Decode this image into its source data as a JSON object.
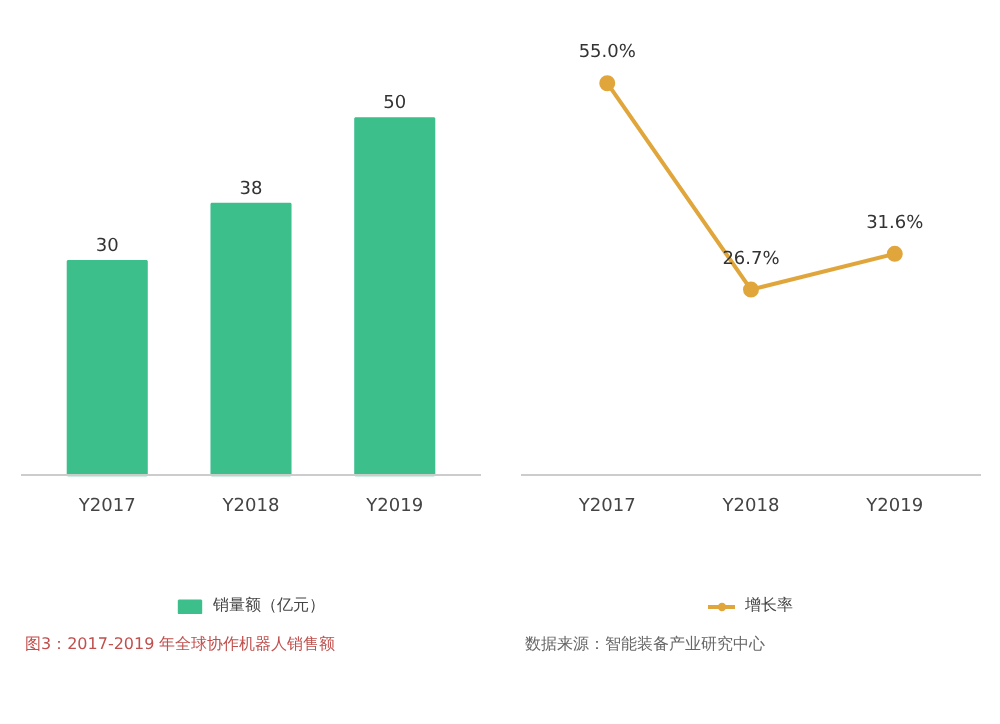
{
  "chart_data": [
    {
      "type": "bar",
      "categories": [
        "Y2017",
        "Y2018",
        "Y2019"
      ],
      "series": [
        {
          "name": "销量额（亿元）",
          "color": "#3dbf8c",
          "values": [
            30,
            38,
            50
          ]
        }
      ],
      "data_labels": true,
      "legend": "bottom",
      "tick_labels": "x",
      "grid": false,
      "annotations": [
        "图3：2017-2019 年全球协作机器人销售额"
      ]
    },
    {
      "type": "line",
      "categories": [
        "Y2017",
        "Y2018",
        "Y2019"
      ],
      "series": [
        {
          "name": "增长率",
          "color": "#e0a63c",
          "values": [
            55.0,
            26.7,
            31.6
          ],
          "value_labels": [
            "55.0%",
            "26.7%",
            "31.6%"
          ]
        }
      ],
      "marker": "circle",
      "line_style": "solid",
      "legend": "bottom",
      "tick_labels": "x",
      "grid": false,
      "annotations": [
        "数据来源：智能装备产业研究中心"
      ]
    }
  ]
}
